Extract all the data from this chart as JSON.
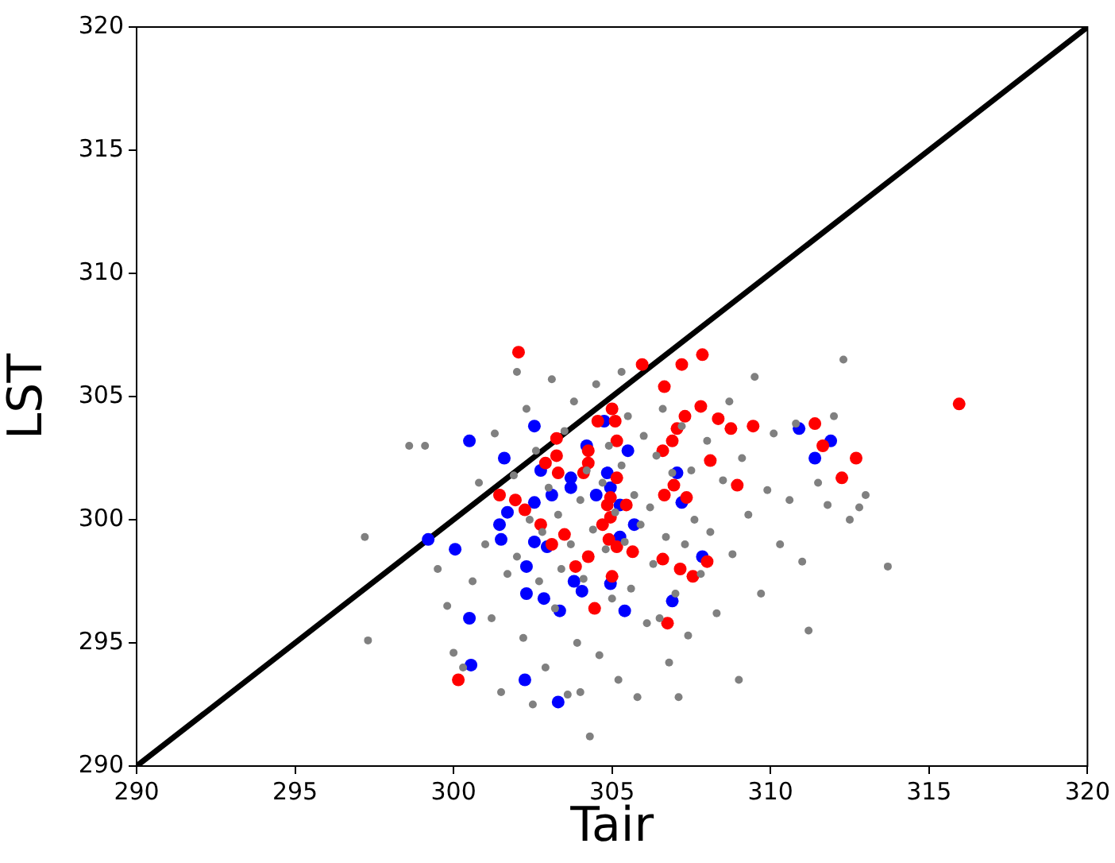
{
  "chart_data": {
    "type": "scatter",
    "xlabel": "Tair",
    "ylabel": "LST",
    "xlim": [
      290,
      320
    ],
    "ylim": [
      290,
      320
    ],
    "xticks": [
      290,
      295,
      300,
      305,
      310,
      315,
      320
    ],
    "yticks": [
      290,
      295,
      300,
      305,
      310,
      315,
      320
    ],
    "grid": false,
    "legend": false,
    "marker": "circle",
    "series": [
      {
        "color": "#808080",
        "x": [
          297.2,
          297.3,
          298.6,
          299.1,
          299.5,
          299.8,
          300.0,
          300.3,
          300.6,
          300.8,
          301.0,
          301.2,
          301.3,
          301.5,
          301.7,
          301.9,
          302.0,
          302.2,
          302.3,
          302.4,
          302.5,
          302.6,
          302.7,
          302.8,
          302.9,
          303.0,
          303.1,
          303.2,
          303.3,
          303.4,
          303.5,
          303.6,
          303.7,
          303.8,
          303.9,
          304.0,
          304.1,
          304.2,
          304.3,
          304.4,
          304.5,
          304.6,
          304.7,
          304.8,
          304.9,
          305.0,
          305.1,
          305.2,
          305.3,
          305.4,
          305.5,
          305.6,
          305.7,
          305.8,
          305.9,
          306.0,
          306.1,
          306.2,
          306.3,
          306.4,
          306.5,
          306.6,
          306.7,
          306.8,
          306.9,
          307.0,
          307.1,
          307.2,
          307.3,
          307.4,
          307.5,
          307.6,
          307.8,
          308.0,
          308.1,
          308.3,
          308.5,
          308.7,
          308.8,
          309.0,
          309.1,
          309.3,
          309.5,
          309.7,
          309.9,
          310.1,
          310.3,
          310.6,
          310.8,
          311.0,
          311.2,
          311.5,
          311.8,
          312.0,
          312.3,
          312.5,
          312.8,
          313.0,
          313.7,
          305.3,
          302.0,
          304.0
        ],
        "values": [
          299.3,
          295.1,
          303.0,
          303.0,
          298.0,
          296.5,
          294.6,
          294.0,
          297.5,
          301.5,
          299.0,
          296.0,
          303.5,
          293.0,
          297.8,
          301.8,
          298.5,
          295.2,
          304.5,
          300.0,
          292.5,
          302.8,
          297.5,
          299.5,
          294.0,
          301.3,
          305.7,
          296.4,
          300.2,
          298.0,
          303.6,
          292.9,
          299.0,
          304.8,
          295.0,
          300.8,
          297.6,
          302.0,
          291.2,
          299.6,
          305.5,
          294.5,
          301.5,
          298.8,
          303.0,
          296.8,
          300.3,
          293.5,
          302.2,
          299.1,
          304.2,
          297.2,
          301.0,
          292.8,
          299.8,
          303.4,
          295.8,
          300.5,
          298.2,
          302.6,
          296.0,
          304.5,
          299.3,
          294.2,
          301.9,
          297.0,
          292.8,
          303.8,
          299.0,
          295.3,
          302.0,
          300.0,
          297.8,
          303.2,
          299.5,
          296.2,
          301.6,
          304.8,
          298.6,
          293.5,
          302.5,
          300.2,
          305.8,
          297.0,
          301.2,
          303.5,
          299.0,
          300.8,
          303.9,
          298.3,
          295.5,
          301.5,
          300.6,
          304.2,
          306.5,
          300.0,
          300.5,
          301.0,
          298.1,
          306.0,
          306.0,
          293.0
        ]
      },
      {
        "color": "#ff0000",
        "x": [
          302.05,
          305.95,
          307.85,
          307.2,
          306.65,
          315.95,
          311.4,
          309.45,
          308.75,
          308.35,
          307.8,
          307.3,
          307.05,
          306.9,
          306.6,
          308.1,
          305.0,
          305.1,
          304.55,
          305.15,
          304.25,
          304.25,
          304.1,
          303.25,
          303.25,
          302.9,
          303.3,
          305.15,
          305.45,
          304.95,
          304.85,
          304.95,
          304.7,
          304.9,
          305.15,
          305.0,
          303.85,
          304.45,
          304.25,
          301.45,
          301.95,
          302.25,
          302.75,
          303.5,
          303.1,
          306.65,
          307.35,
          306.95,
          308.95,
          306.6,
          307.15,
          307.55,
          308.0,
          306.75,
          300.15,
          305.65,
          311.65,
          312.25,
          312.7
        ],
        "values": [
          306.8,
          306.3,
          306.7,
          306.3,
          305.4,
          304.7,
          303.9,
          303.8,
          303.7,
          304.1,
          304.6,
          304.2,
          303.7,
          303.2,
          302.8,
          302.4,
          304.5,
          304.0,
          304.0,
          303.2,
          302.8,
          302.3,
          301.9,
          303.3,
          302.6,
          302.3,
          301.9,
          301.7,
          300.6,
          300.9,
          300.6,
          300.1,
          299.8,
          299.2,
          298.9,
          297.7,
          298.1,
          296.4,
          298.5,
          301.0,
          300.8,
          300.4,
          299.8,
          299.4,
          299.0,
          301.0,
          300.9,
          301.4,
          301.4,
          298.4,
          298.0,
          297.7,
          298.3,
          295.8,
          293.5,
          298.7,
          303.0,
          301.7,
          302.5
        ]
      },
      {
        "color": "#0000ff",
        "x": [
          300.5,
          301.6,
          302.55,
          299.2,
          300.05,
          300.5,
          300.55,
          302.25,
          303.3,
          303.35,
          302.85,
          302.3,
          303.8,
          304.05,
          304.95,
          305.4,
          306.9,
          307.85,
          305.7,
          302.55,
          302.95,
          302.3,
          301.5,
          301.45,
          301.7,
          302.55,
          303.1,
          303.7,
          303.7,
          302.75,
          304.2,
          304.75,
          304.85,
          304.95,
          305.25,
          304.5,
          305.25,
          305.5,
          307.05,
          307.2,
          310.9,
          311.9,
          311.4
        ],
        "values": [
          303.2,
          302.5,
          303.8,
          299.2,
          298.8,
          296.0,
          294.1,
          293.5,
          292.6,
          296.3,
          296.8,
          297.0,
          297.5,
          297.1,
          297.4,
          296.3,
          296.7,
          298.5,
          299.8,
          299.1,
          298.9,
          298.1,
          299.2,
          299.8,
          300.3,
          300.7,
          301.0,
          301.7,
          301.3,
          302.0,
          303.0,
          304.0,
          301.9,
          301.3,
          300.6,
          301.0,
          299.3,
          302.8,
          301.9,
          300.7,
          303.7,
          303.2,
          302.5
        ]
      },
      {
        "type": "line",
        "color": "#000000",
        "x": [
          290,
          320
        ],
        "values": [
          290,
          320
        ],
        "marker": "none"
      }
    ]
  }
}
